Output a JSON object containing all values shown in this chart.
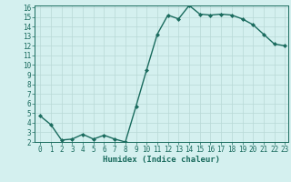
{
  "x": [
    0,
    1,
    2,
    3,
    4,
    5,
    6,
    7,
    8,
    9,
    10,
    11,
    12,
    13,
    14,
    15,
    16,
    17,
    18,
    19,
    20,
    21,
    22,
    23
  ],
  "y": [
    4.7,
    3.8,
    2.2,
    2.3,
    2.8,
    2.3,
    2.7,
    2.3,
    2.0,
    5.7,
    9.5,
    13.2,
    15.2,
    14.8,
    16.2,
    15.3,
    15.2,
    15.3,
    15.2,
    14.8,
    14.2,
    13.2,
    12.2,
    12.0
  ],
  "xlabel": "Humidex (Indice chaleur)",
  "ylim": [
    2,
    16
  ],
  "xlim": [
    -0.5,
    23.3
  ],
  "yticks": [
    2,
    3,
    4,
    5,
    6,
    7,
    8,
    9,
    10,
    11,
    12,
    13,
    14,
    15,
    16
  ],
  "xticks": [
    0,
    1,
    2,
    3,
    4,
    5,
    6,
    7,
    8,
    9,
    10,
    11,
    12,
    13,
    14,
    15,
    16,
    17,
    18,
    19,
    20,
    21,
    22,
    23
  ],
  "line_color": "#1a6b5e",
  "marker": "D",
  "marker_size": 2.0,
  "bg_color": "#d4f0ef",
  "grid_color": "#b8d8d6",
  "tick_label_fontsize": 5.5,
  "xlabel_fontsize": 6.5,
  "line_width": 1.0
}
